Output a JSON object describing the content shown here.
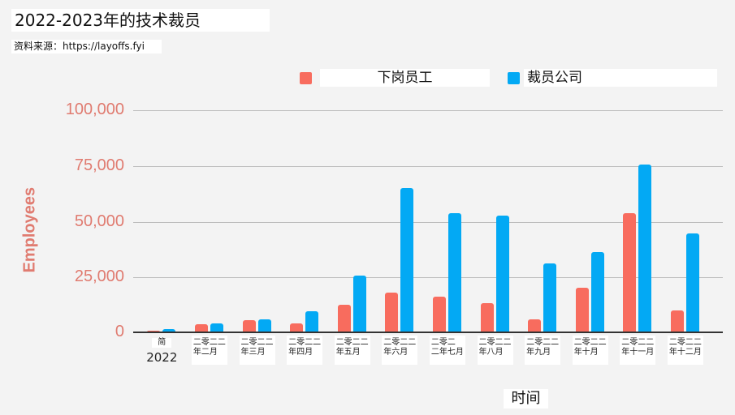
{
  "title": "2022-2023年的技术裁员",
  "source": "资料来源：https://layoffs.fyi",
  "legend": [
    {
      "label": "下岗员工",
      "color": "#f86c5e"
    },
    {
      "label": "裁员公司",
      "color": "#03a9f4"
    }
  ],
  "yaxis": {
    "label": "Employees",
    "ticks": [
      "100,000",
      "75,000",
      "50,000",
      "25,000",
      "0"
    ]
  },
  "xaxis": {
    "title": "时间",
    "categories": [
      "简\n2022",
      "二零二二\n年二月",
      "二零二二\n年三月",
      "二零二二\n年四月",
      "二零二二\n年五月",
      "二零二二\n年六月",
      "二零二\n二年七月",
      "二零二二\n年八月",
      "二零二二\n年九月",
      "二零二二\n年十月",
      "二零二二\n年十一月",
      "二零二二\n年十二月"
    ]
  },
  "chart_data": {
    "type": "bar",
    "title": "2022-2023年的技术裁员",
    "subtitle": "资料来源：https://layoffs.fyi",
    "xlabel": "时间",
    "ylabel": "Employees",
    "ylim": [
      0,
      100000
    ],
    "yticks": [
      0,
      25000,
      50000,
      75000,
      100000
    ],
    "grid": true,
    "legend_position": "top",
    "categories": [
      "简 2022",
      "二零二二年二月",
      "二零二二年三月",
      "二零二二年四月",
      "二零二二年五月",
      "二零二二年六月",
      "二零二二年七月",
      "二零二二年八月",
      "二零二二年九月",
      "二零二二年十月",
      "二零二二年十一月",
      "二零二二年十二月"
    ],
    "series": [
      {
        "name": "下岗员工",
        "color": "#f86c5e",
        "values": [
          500,
          3500,
          5500,
          4000,
          12500,
          18000,
          16000,
          13000,
          6000,
          20000,
          53500,
          10000
        ]
      },
      {
        "name": "裁员公司",
        "color": "#03a9f4",
        "values": [
          1500,
          4000,
          6000,
          9500,
          25500,
          65000,
          53500,
          52500,
          31000,
          36000,
          75500,
          44500
        ]
      }
    ]
  }
}
